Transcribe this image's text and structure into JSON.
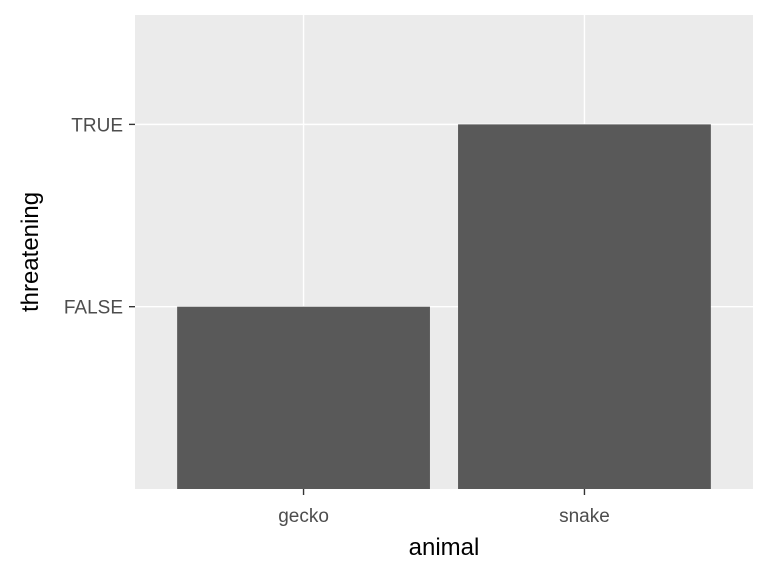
{
  "chart_data": {
    "type": "bar",
    "categories": [
      "gecko",
      "snake"
    ],
    "y_levels": [
      "FALSE",
      "TRUE"
    ],
    "values": [
      "FALSE",
      "TRUE"
    ],
    "xlabel": "animal",
    "ylabel": "threatening",
    "grid": true,
    "legend": "none",
    "colors": {
      "panel": "#ebebeb",
      "grid": "#ffffff",
      "bar": "#595959",
      "tick_label": "#4d4d4d",
      "axis_title": "#000000"
    }
  }
}
